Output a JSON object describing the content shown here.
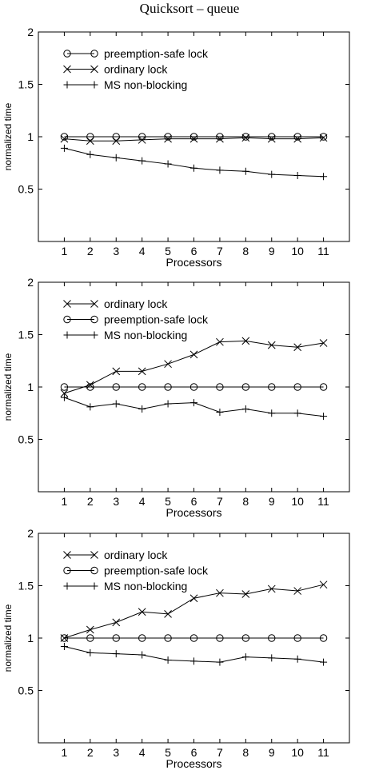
{
  "title": "Quicksort – queue",
  "chart_data": [
    {
      "type": "line",
      "xlabel": "Processors",
      "ylabel": "normalized time",
      "x": [
        1,
        2,
        3,
        4,
        5,
        6,
        7,
        8,
        9,
        10,
        11
      ],
      "xlim": [
        0,
        12
      ],
      "ylim": [
        0,
        2
      ],
      "yticks": [
        "0.5",
        "1",
        "1.5",
        "2"
      ],
      "grid": false,
      "legend_position": "top-left",
      "series": [
        {
          "name": "preemption-safe lock",
          "marker": "circle",
          "values": [
            1.0,
            1.0,
            1.0,
            1.0,
            1.0,
            1.0,
            1.0,
            1.0,
            1.0,
            1.0,
            1.0
          ]
        },
        {
          "name": "ordinary lock",
          "marker": "x",
          "values": [
            0.98,
            0.96,
            0.96,
            0.97,
            0.98,
            0.98,
            0.98,
            0.99,
            0.98,
            0.98,
            0.99
          ]
        },
        {
          "name": "MS non-blocking",
          "marker": "plus",
          "values": [
            0.89,
            0.83,
            0.8,
            0.77,
            0.74,
            0.7,
            0.68,
            0.67,
            0.64,
            0.63,
            0.62
          ]
        }
      ]
    },
    {
      "type": "line",
      "xlabel": "Processors",
      "ylabel": "normalized time",
      "x": [
        1,
        2,
        3,
        4,
        5,
        6,
        7,
        8,
        9,
        10,
        11
      ],
      "xlim": [
        0,
        12
      ],
      "ylim": [
        0,
        2
      ],
      "yticks": [
        "0.5",
        "1",
        "1.5",
        "2"
      ],
      "grid": false,
      "legend_position": "top-left",
      "series": [
        {
          "name": "ordinary lock",
          "marker": "x",
          "values": [
            0.94,
            1.02,
            1.15,
            1.15,
            1.22,
            1.31,
            1.43,
            1.44,
            1.4,
            1.38,
            1.42
          ]
        },
        {
          "name": "preemption-safe lock",
          "marker": "circle",
          "values": [
            1.0,
            1.0,
            1.0,
            1.0,
            1.0,
            1.0,
            1.0,
            1.0,
            1.0,
            1.0,
            1.0
          ]
        },
        {
          "name": "MS non-blocking",
          "marker": "plus",
          "values": [
            0.9,
            0.81,
            0.84,
            0.79,
            0.84,
            0.85,
            0.76,
            0.79,
            0.75,
            0.75,
            0.72
          ]
        }
      ]
    },
    {
      "type": "line",
      "xlabel": "Processors",
      "ylabel": "normalized time",
      "x": [
        1,
        2,
        3,
        4,
        5,
        6,
        7,
        8,
        9,
        10,
        11
      ],
      "xlim": [
        0,
        12
      ],
      "ylim": [
        0,
        2
      ],
      "yticks": [
        "0.5",
        "1",
        "1.5",
        "2"
      ],
      "grid": false,
      "legend_position": "top-left",
      "series": [
        {
          "name": "ordinary lock",
          "marker": "x",
          "values": [
            1.0,
            1.08,
            1.15,
            1.25,
            1.23,
            1.38,
            1.43,
            1.42,
            1.47,
            1.45,
            1.51
          ]
        },
        {
          "name": "preemption-safe lock",
          "marker": "circle",
          "values": [
            1.0,
            1.0,
            1.0,
            1.0,
            1.0,
            1.0,
            1.0,
            1.0,
            1.0,
            1.0,
            1.0
          ]
        },
        {
          "name": "MS non-blocking",
          "marker": "plus",
          "values": [
            0.92,
            0.86,
            0.85,
            0.84,
            0.79,
            0.78,
            0.77,
            0.82,
            0.81,
            0.8,
            0.77
          ]
        }
      ]
    }
  ]
}
